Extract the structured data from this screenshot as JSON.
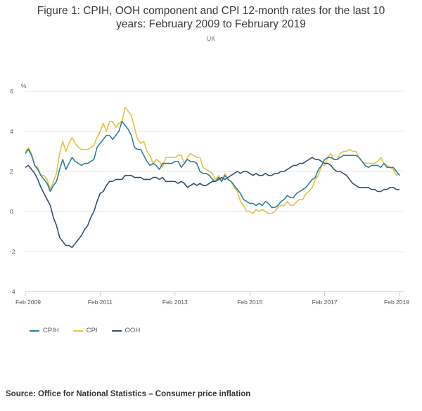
{
  "title_line1": "Figure 1: CPIH, OOH component and CPI 12-month rates for the last 10",
  "title_line2": "years: February 2009 to February 2019",
  "subtitle": "UK",
  "source": "Source: Office for National Statistics – Consumer price inflation",
  "chart_data": {
    "type": "line",
    "ylabel": "%",
    "ylim": [
      -4,
      6
    ],
    "yticks": [
      -4,
      -2,
      0,
      2,
      4,
      6
    ],
    "xticks": [
      "Feb 2009",
      "Feb 2011",
      "Feb 2013",
      "Feb 2015",
      "Feb 2017",
      "Feb 2019"
    ],
    "x_start": "Feb 2009",
    "x_end": "Feb 2019",
    "grid": true,
    "legend_position": "bottom-left",
    "colors": {
      "CPIH": "#2c7fa3",
      "CPI": "#e8c240",
      "OOH": "#34506e"
    },
    "series": [
      {
        "name": "CPIH",
        "values": [
          2.9,
          3.1,
          2.8,
          2.3,
          2.1,
          1.8,
          1.6,
          1.4,
          1.0,
          1.3,
          1.5,
          2.1,
          2.6,
          2.1,
          2.4,
          2.7,
          2.5,
          2.4,
          2.3,
          2.4,
          2.4,
          2.5,
          2.6,
          3.2,
          3.4,
          3.6,
          3.8,
          3.8,
          3.6,
          3.8,
          4.0,
          4.5,
          4.3,
          4.1,
          3.8,
          3.2,
          3.1,
          3.1,
          2.8,
          2.5,
          2.3,
          2.4,
          2.3,
          2.1,
          2.4,
          2.4,
          2.4,
          2.4,
          2.5,
          2.5,
          2.2,
          2.4,
          2.6,
          2.5,
          2.5,
          2.4,
          2.0,
          1.9,
          1.9,
          1.8,
          1.6,
          1.5,
          1.7,
          1.5,
          1.8,
          1.6,
          1.5,
          1.3,
          1.1,
          0.9,
          0.6,
          0.5,
          0.4,
          0.4,
          0.3,
          0.4,
          0.3,
          0.5,
          0.4,
          0.2,
          0.2,
          0.3,
          0.5,
          0.6,
          0.8,
          0.7,
          0.7,
          0.9,
          1.0,
          1.1,
          1.2,
          1.4,
          1.6,
          1.7,
          2.1,
          2.3,
          2.6,
          2.7,
          2.7,
          2.6,
          2.6,
          2.7,
          2.8,
          2.8,
          2.8,
          2.8,
          2.8,
          2.7,
          2.5,
          2.3,
          2.2,
          2.3,
          2.3,
          2.3,
          2.2,
          2.4,
          2.2,
          2.2,
          2.2,
          2.0,
          1.8
        ]
      },
      {
        "name": "CPI",
        "values": [
          3.0,
          3.2,
          2.9,
          2.3,
          2.2,
          1.8,
          1.8,
          1.6,
          1.1,
          1.5,
          1.9,
          2.9,
          3.5,
          3.0,
          3.4,
          3.7,
          3.4,
          3.2,
          3.1,
          3.1,
          3.1,
          3.2,
          3.3,
          3.7,
          4.0,
          4.4,
          4.0,
          4.5,
          4.5,
          4.2,
          4.4,
          4.5,
          5.2,
          5.0,
          4.8,
          4.2,
          3.6,
          3.4,
          3.5,
          3.0,
          2.8,
          2.4,
          2.6,
          2.5,
          2.2,
          2.7,
          2.7,
          2.7,
          2.7,
          2.8,
          2.8,
          2.4,
          2.7,
          2.9,
          2.8,
          2.7,
          2.7,
          2.2,
          2.1,
          2.0,
          1.9,
          1.6,
          1.8,
          1.5,
          1.9,
          1.6,
          1.5,
          1.2,
          1.0,
          0.5,
          0.3,
          0.0,
          0.0,
          -0.1,
          0.1,
          0.0,
          0.1,
          0.0,
          -0.1,
          -0.1,
          0.0,
          0.2,
          0.3,
          0.3,
          0.5,
          0.3,
          0.3,
          0.5,
          0.6,
          0.6,
          0.9,
          1.0,
          1.2,
          1.6,
          1.8,
          2.3,
          2.3,
          2.7,
          2.9,
          2.6,
          2.6,
          2.9,
          3.0,
          3.0,
          3.1,
          3.0,
          3.0,
          2.7,
          2.5,
          2.4,
          2.4,
          2.4,
          2.4,
          2.5,
          2.7,
          2.4,
          2.3,
          2.2,
          2.1,
          1.8,
          1.9
        ]
      },
      {
        "name": "OOH",
        "values": [
          2.2,
          2.3,
          2.1,
          1.9,
          1.6,
          1.2,
          0.9,
          0.6,
          0.3,
          -0.3,
          -0.7,
          -1.3,
          -1.5,
          -1.7,
          -1.7,
          -1.8,
          -1.6,
          -1.4,
          -1.2,
          -0.9,
          -0.7,
          -0.3,
          0.0,
          0.5,
          0.9,
          1.0,
          1.3,
          1.5,
          1.5,
          1.6,
          1.6,
          1.6,
          1.8,
          1.8,
          1.8,
          1.7,
          1.7,
          1.7,
          1.6,
          1.6,
          1.6,
          1.7,
          1.7,
          1.6,
          1.7,
          1.5,
          1.5,
          1.5,
          1.5,
          1.4,
          1.5,
          1.4,
          1.2,
          1.3,
          1.4,
          1.3,
          1.4,
          1.3,
          1.3,
          1.4,
          1.5,
          1.5,
          1.6,
          1.7,
          1.6,
          1.7,
          1.8,
          1.9,
          2.0,
          1.9,
          2.0,
          2.0,
          1.9,
          1.8,
          1.9,
          1.8,
          1.8,
          1.9,
          1.8,
          1.8,
          1.9,
          1.9,
          2.0,
          2.0,
          2.1,
          2.2,
          2.3,
          2.3,
          2.4,
          2.4,
          2.5,
          2.6,
          2.7,
          2.6,
          2.6,
          2.5,
          2.4,
          2.4,
          2.3,
          2.1,
          2.0,
          2.0,
          1.9,
          1.8,
          1.6,
          1.4,
          1.3,
          1.2,
          1.2,
          1.2,
          1.2,
          1.1,
          1.1,
          1.0,
          1.0,
          1.1,
          1.1,
          1.2,
          1.2,
          1.1,
          1.1
        ]
      }
    ]
  }
}
